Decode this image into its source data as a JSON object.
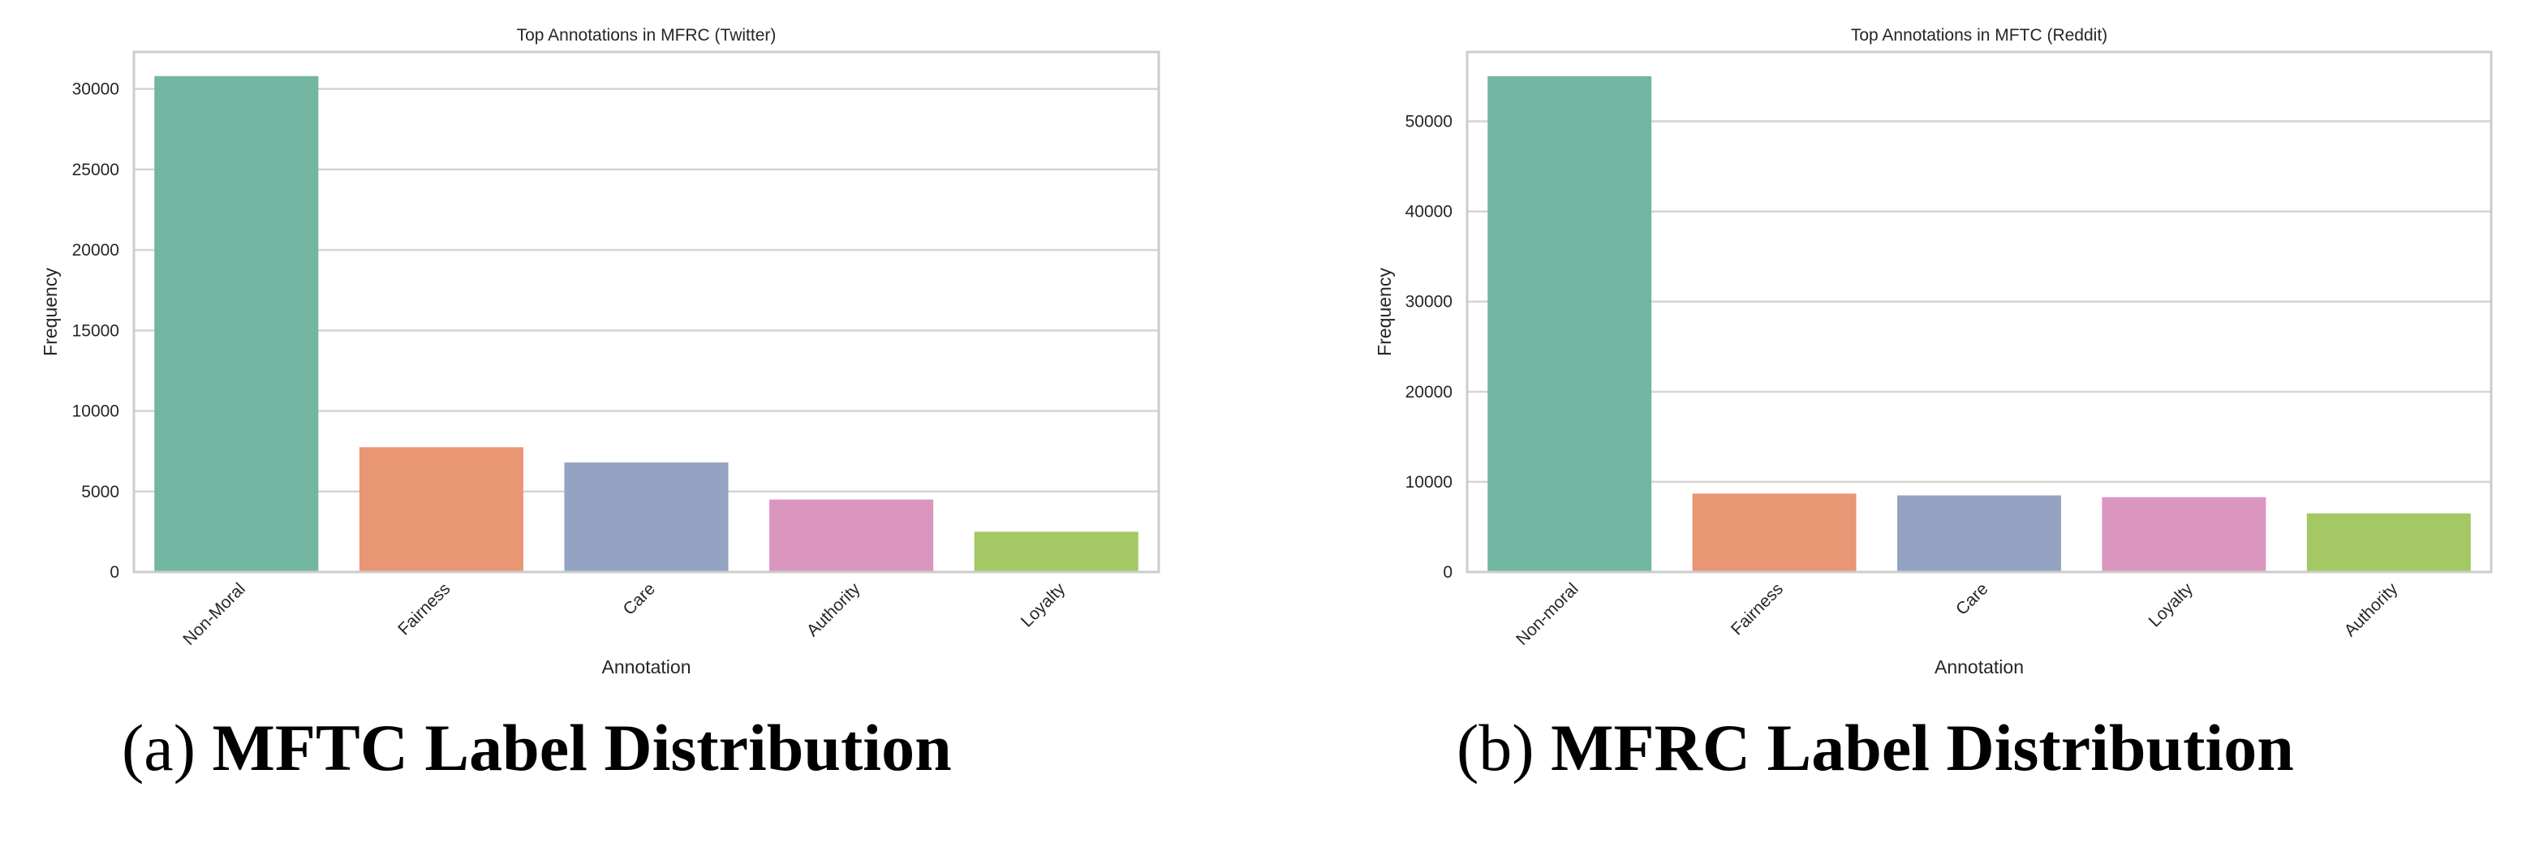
{
  "chart_data": [
    {
      "type": "bar",
      "title": "Top Annotations in MFRC (Twitter)",
      "xlabel": "Annotation",
      "ylabel": "Frequency",
      "categories": [
        "Non-Moral",
        "Fairness",
        "Care",
        "Authority",
        "Loyalty"
      ],
      "values": [
        30800,
        7750,
        6800,
        4500,
        2500
      ],
      "ylim": [
        0,
        32300
      ],
      "yticks": [
        0,
        5000,
        10000,
        15000,
        20000,
        25000,
        30000
      ],
      "grid": true,
      "colors": [
        "#72b6a1",
        "#e99675",
        "#95a3c3",
        "#db96c0",
        "#a3c864"
      ]
    },
    {
      "type": "bar",
      "title": "Top Annotations in MFTC (Reddit)",
      "xlabel": "Annotation",
      "ylabel": "Frequency",
      "categories": [
        "Non-moral",
        "Fairness",
        "Care",
        "Loyalty",
        "Authority"
      ],
      "values": [
        55000,
        8700,
        8500,
        8300,
        6500
      ],
      "ylim": [
        0,
        57700
      ],
      "yticks": [
        0,
        10000,
        20000,
        30000,
        40000,
        50000
      ],
      "grid": true,
      "colors": [
        "#72b6a1",
        "#e99675",
        "#95a3c3",
        "#db96c0",
        "#a3c864"
      ]
    }
  ],
  "captions": [
    {
      "prefix": "(a)",
      "text": "MFTC Label Distribution"
    },
    {
      "prefix": "(b)",
      "text": "MFRC Label Distribution"
    }
  ]
}
